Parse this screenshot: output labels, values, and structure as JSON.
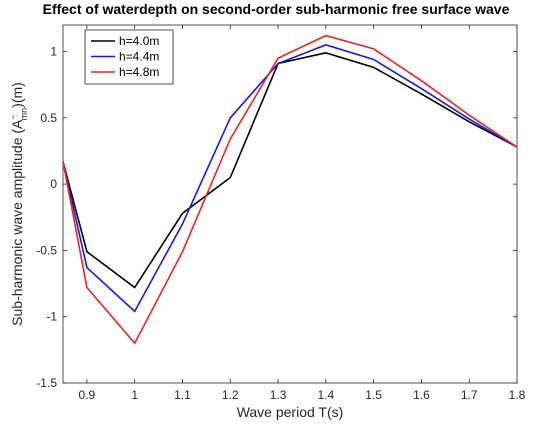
{
  "chart_data": {
    "type": "line",
    "title": "Effect of waterdepth on second-order sub-harmonic free surface wave",
    "xlabel": "Wave period T(s)",
    "ylabel_main": "Sub-harmonic wave amplitude (A",
    "ylabel_sub": "mn",
    "ylabel_sup": "−",
    "ylabel_end": ")(m)",
    "xlim": [
      0.85,
      1.8
    ],
    "ylim": [
      -1.5,
      1.2
    ],
    "xticks": [
      0.9,
      1,
      1.1,
      1.2,
      1.3,
      1.4,
      1.5,
      1.6,
      1.7,
      1.8
    ],
    "xtick_labels": [
      "0.9",
      "1",
      "1.1",
      "1.2",
      "1.3",
      "1.4",
      "1.5",
      "1.6",
      "1.7",
      "1.8"
    ],
    "yticks": [
      -1.5,
      -1,
      -0.5,
      0,
      0.5,
      1
    ],
    "ytick_labels": [
      "-1.5",
      "-1",
      "-0.5",
      "0",
      "0.5",
      "1"
    ],
    "grid": false,
    "legend_position": "top-left",
    "x": [
      0.85,
      0.9,
      1.0,
      1.1,
      1.2,
      1.3,
      1.4,
      1.5,
      1.6,
      1.7,
      1.8
    ],
    "series": [
      {
        "name": "h=4.0m",
        "color": "#000000",
        "values": [
          0.17,
          -0.51,
          -0.78,
          -0.22,
          0.05,
          0.91,
          0.99,
          0.88,
          0.68,
          0.47,
          0.28
        ]
      },
      {
        "name": "h=4.4m",
        "color": "#1a1adf",
        "values": [
          0.17,
          -0.63,
          -0.96,
          -0.3,
          0.5,
          0.91,
          1.05,
          0.94,
          0.72,
          0.49,
          0.28
        ]
      },
      {
        "name": "h=4.8m",
        "color": "#e0282c",
        "values": [
          0.17,
          -0.78,
          -1.2,
          -0.51,
          0.34,
          0.95,
          1.12,
          1.02,
          0.78,
          0.52,
          0.28
        ]
      }
    ]
  }
}
